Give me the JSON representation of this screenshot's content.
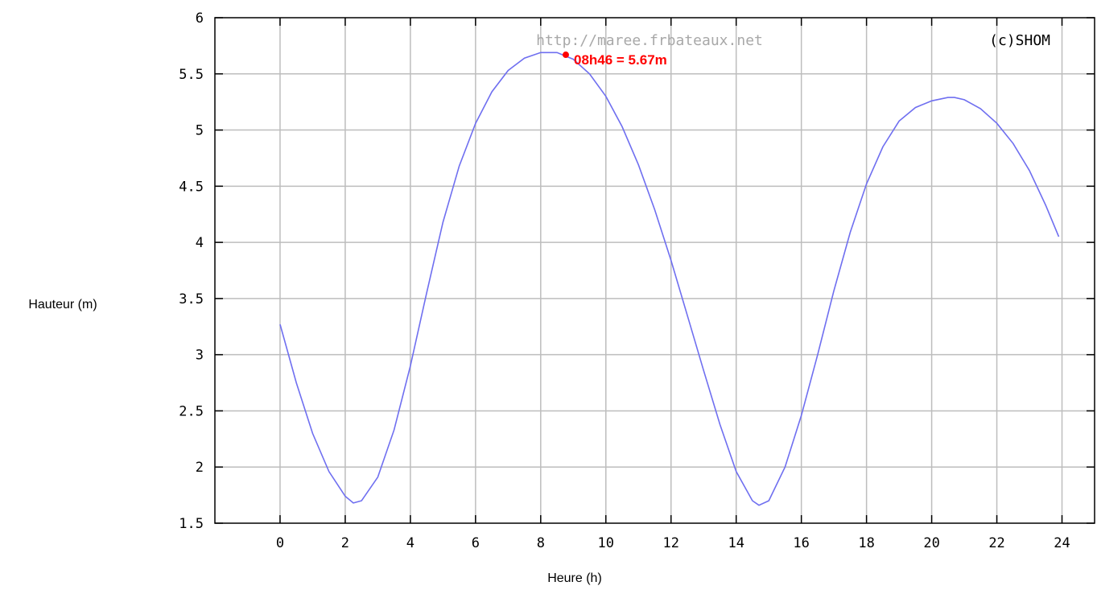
{
  "chart_data": {
    "type": "line",
    "xlabel": "Heure (h)",
    "ylabel": "Hauteur (m)",
    "xlim": [
      -2,
      25
    ],
    "ylim": [
      1.5,
      6
    ],
    "x_ticks": [
      0,
      2,
      4,
      6,
      8,
      10,
      12,
      14,
      16,
      18,
      20,
      22,
      24
    ],
    "y_ticks": [
      1.5,
      2,
      2.5,
      3,
      3.5,
      4,
      4.5,
      5,
      5.5,
      6
    ],
    "grid": true,
    "watermark": "http://maree.frbateaux.net",
    "copyright": "(c)SHOM",
    "line_color": "#6f6ff0",
    "annotation": {
      "label": "08h46 = 5.67m",
      "x": 8.77,
      "y": 5.67,
      "color": "#ff0000"
    },
    "series": [
      {
        "x": [
          0,
          0.5,
          1,
          1.5,
          2,
          2.25,
          2.5,
          3,
          3.5,
          4,
          4.5,
          5,
          5.5,
          6,
          6.5,
          7,
          7.5,
          8,
          8.5,
          9,
          9.5,
          10,
          10.5,
          11,
          11.5,
          12,
          12.5,
          13,
          13.5,
          14,
          14.5,
          14.7,
          15,
          15.5,
          16,
          16.5,
          17,
          17.5,
          18,
          18.5,
          19,
          19.5,
          20,
          20.5,
          20.7,
          21,
          21.5,
          22,
          22.5,
          23,
          23.5,
          23.9
        ],
        "values": [
          3.27,
          2.75,
          2.3,
          1.96,
          1.74,
          1.68,
          1.7,
          1.91,
          2.33,
          2.9,
          3.55,
          4.18,
          4.68,
          5.06,
          5.34,
          5.53,
          5.64,
          5.69,
          5.69,
          5.63,
          5.5,
          5.3,
          5.03,
          4.69,
          4.29,
          3.84,
          3.35,
          2.86,
          2.38,
          1.96,
          1.7,
          1.66,
          1.7,
          2.0,
          2.46,
          3.0,
          3.57,
          4.09,
          4.52,
          4.85,
          5.08,
          5.2,
          5.26,
          5.29,
          5.29,
          5.27,
          5.19,
          5.06,
          4.88,
          4.64,
          4.33,
          4.05
        ]
      }
    ]
  }
}
